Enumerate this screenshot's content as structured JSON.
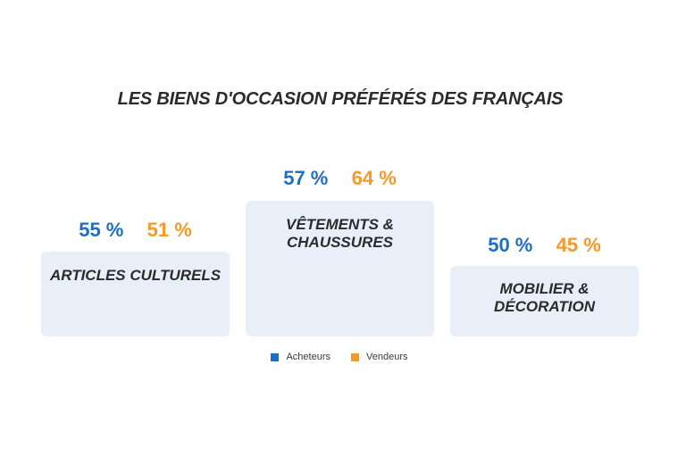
{
  "chart_data": {
    "type": "bar",
    "title": "LES BIENS D'OCCASION PRÉFÉRÉS DES FRANÇAIS",
    "categories": [
      "ARTICLES CULTURELS",
      "VÊTEMENTS & CHAUSSURES",
      "MOBILIER & DÉCORATION"
    ],
    "series": [
      {
        "name": "Acheteurs",
        "color": "#1f6fbf",
        "values": [
          55,
          57,
          50
        ],
        "labels": [
          "55 %",
          "57 %",
          "50 %"
        ]
      },
      {
        "name": "Vendeurs",
        "color": "#f5992a",
        "values": [
          51,
          64,
          45
        ],
        "labels": [
          "51 %",
          "64 %",
          "45 %"
        ]
      }
    ],
    "category_labels": [
      {
        "line1": "ARTICLES CULTURELS",
        "line2": ""
      },
      {
        "line1": "VÊTEMENTS &",
        "line2": "CHAUSSURES"
      },
      {
        "line1": "MOBILIER &",
        "line2": "DÉCORATION"
      }
    ],
    "legend": {
      "position": "bottom"
    },
    "unit": "%"
  }
}
